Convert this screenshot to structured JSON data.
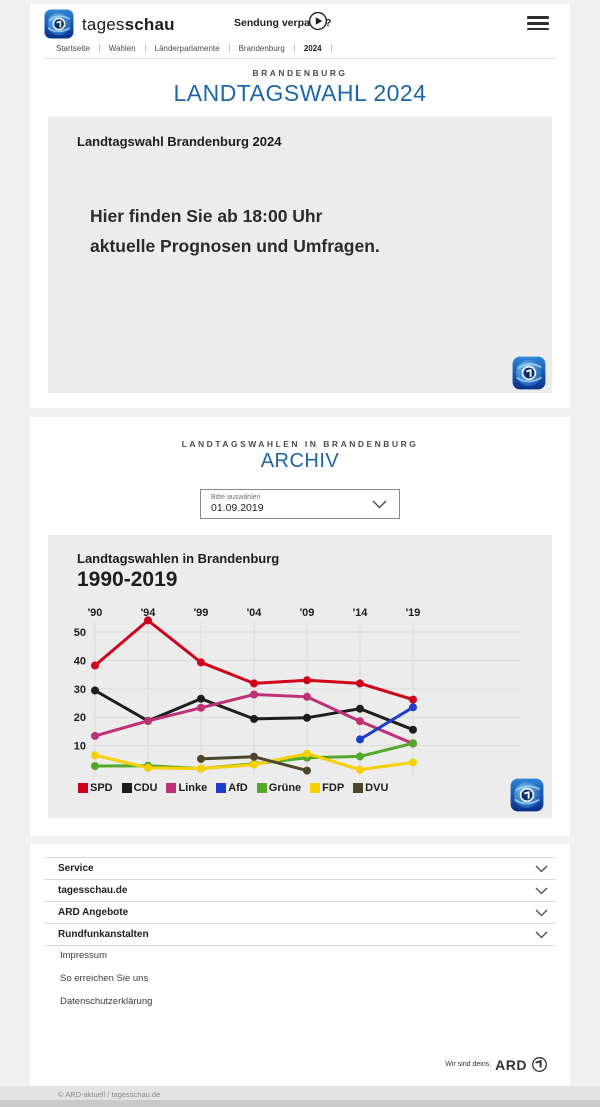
{
  "colors": {
    "accent_blue": "#1b66a9",
    "card_bg": "#ffffff",
    "box_bg": "#ececec",
    "page_bg": "#f0f0f0"
  },
  "header": {
    "brand": {
      "regular": "tages",
      "bold": "schau"
    },
    "sendung_verpasst": "Sendung verpasst?",
    "breadcrumb": [
      "Startseite",
      "Wahlen",
      "Länderparlamente",
      "Brandenburg",
      "2024"
    ]
  },
  "hero": {
    "kicker": "BRANDENBURG",
    "title": "LANDTAGSWAHL 2024",
    "teaser": {
      "heading": "Landtagswahl Brandenburg 2024",
      "line1": "Hier finden Sie ab 18:00 Uhr",
      "line2": "aktuelle Prognosen und Umfragen."
    }
  },
  "archive": {
    "kicker": "LANDTAGSWAHLEN IN BRANDENBURG",
    "title": "ARCHIV",
    "select": {
      "label": "Bitte auswählen",
      "value": "01.09.2019"
    }
  },
  "chart_data": {
    "type": "line",
    "title": "Landtagswahlen in Brandenburg",
    "subtitle": "1990-2019",
    "categories": [
      "'90",
      "'94",
      "'99",
      "'04",
      "'09",
      "'14",
      "'19"
    ],
    "y_ticks": [
      10,
      20,
      30,
      40,
      50
    ],
    "ylim": [
      0,
      57
    ],
    "grid": true,
    "legend_position": "bottom",
    "unit": "percent",
    "series": [
      {
        "name": "SPD",
        "color": "#d0021b",
        "values": [
          38.2,
          54.1,
          39.3,
          31.9,
          33.0,
          31.9,
          26.2
        ]
      },
      {
        "name": "CDU",
        "color": "#1d1d1b",
        "values": [
          29.4,
          18.7,
          26.5,
          19.4,
          19.8,
          23.0,
          15.6
        ]
      },
      {
        "name": "Linke",
        "color": "#be3075",
        "values": [
          13.4,
          18.7,
          23.3,
          28.0,
          27.2,
          18.6,
          10.7
        ]
      },
      {
        "name": "AfD",
        "color": "#1d3dcc",
        "values": [
          null,
          null,
          null,
          null,
          null,
          12.2,
          23.5
        ]
      },
      {
        "name": "Grüne",
        "color": "#51a829",
        "values": [
          2.8,
          2.9,
          1.9,
          3.6,
          5.7,
          6.2,
          10.8
        ]
      },
      {
        "name": "FDP",
        "color": "#f8d000",
        "values": [
          6.6,
          2.2,
          1.9,
          3.3,
          7.2,
          1.5,
          4.1
        ]
      },
      {
        "name": "DVU",
        "color": "#4e4628",
        "values": [
          null,
          null,
          5.3,
          6.1,
          1.2,
          null,
          null
        ]
      }
    ]
  },
  "footer": {
    "accordion": [
      "Service",
      "tagesschau.de",
      "ARD Angebote",
      "Rundfunkanstalten"
    ],
    "links": [
      "Impressum",
      "So erreichen Sie uns",
      "Datenschutzerklärung"
    ],
    "ard_claim": "Wir sind deins.",
    "ard_brand": "ARD",
    "copyright": "© ARD-aktuell / tagesschau.de"
  }
}
